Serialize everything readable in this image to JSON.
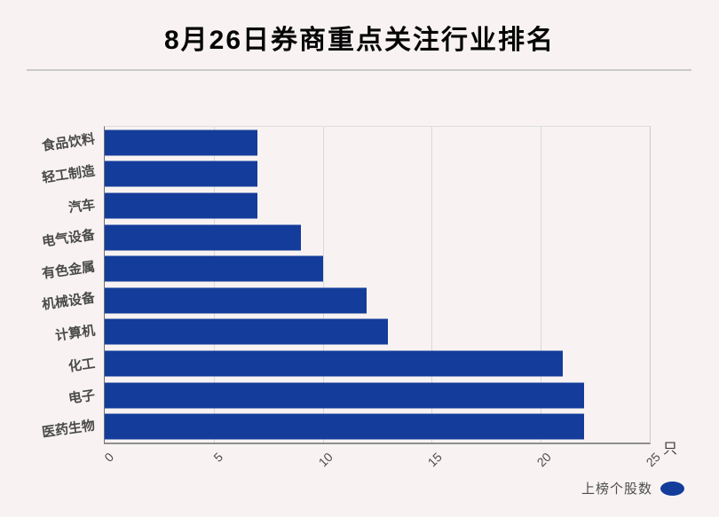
{
  "title": "8月26日券商重点关注行业排名",
  "chart_data": {
    "type": "bar",
    "orientation": "horizontal",
    "title": "8月26日券商重点关注行业排名",
    "categories": [
      "食品饮料",
      "轻工制造",
      "汽车",
      "电气设备",
      "有色金属",
      "机械设备",
      "计算机",
      "化工",
      "电子",
      "医药生物"
    ],
    "values": [
      7,
      7,
      7,
      9,
      10,
      12,
      13,
      21,
      22,
      22
    ],
    "series": [
      {
        "name": "上榜个股数",
        "values": [
          7,
          7,
          7,
          9,
          10,
          12,
          13,
          21,
          22,
          22
        ]
      }
    ],
    "xlim": [
      0,
      25
    ],
    "xticks": [
      "0",
      "5",
      "10",
      "15",
      "20",
      "25"
    ],
    "xtick_rotation_deg": 45,
    "unit": "只",
    "grid": true,
    "legend": {
      "label": "上榜个股数",
      "position": "bottom-right"
    },
    "bar_color": "#143c9b",
    "background_color": "#f8f3f2"
  }
}
